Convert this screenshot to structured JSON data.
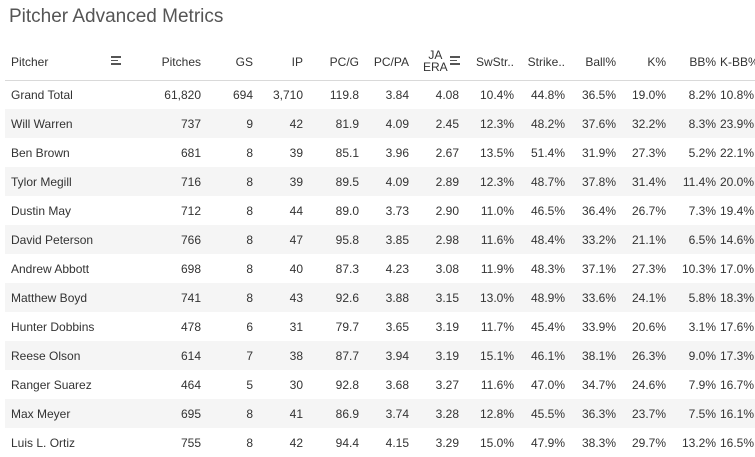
{
  "title": "Pitcher Advanced Metrics",
  "columns": {
    "pitcher": "Pitcher",
    "pitches": "Pitches",
    "gs": "GS",
    "ip": "IP",
    "pcg": "PC/G",
    "pcpa": "PC/PA",
    "ja_line1": "JA",
    "ja_line2": "ERA",
    "swstr": "SwStr..",
    "strike": "Strike..",
    "ball": "Ball%",
    "k": "K%",
    "bb": "BB%",
    "kbb": "K-BB%"
  },
  "total": [
    "Grand Total",
    "61,820",
    "694",
    "3,710",
    "119.8",
    "3.84",
    "4.08",
    "10.4%",
    "44.8%",
    "36.5%",
    "19.0%",
    "8.2%",
    "10.8%"
  ],
  "rows": [
    [
      "Will Warren",
      "737",
      "9",
      "42",
      "81.9",
      "4.09",
      "2.45",
      "12.3%",
      "48.2%",
      "37.6%",
      "32.2%",
      "8.3%",
      "23.9%"
    ],
    [
      "Ben Brown",
      "681",
      "8",
      "39",
      "85.1",
      "3.96",
      "2.67",
      "13.5%",
      "51.4%",
      "31.9%",
      "27.3%",
      "5.2%",
      "22.1%"
    ],
    [
      "Tylor Megill",
      "716",
      "8",
      "39",
      "89.5",
      "4.09",
      "2.89",
      "12.3%",
      "48.7%",
      "37.8%",
      "31.4%",
      "11.4%",
      "20.0%"
    ],
    [
      "Dustin May",
      "712",
      "8",
      "44",
      "89.0",
      "3.73",
      "2.90",
      "11.0%",
      "46.5%",
      "36.4%",
      "26.7%",
      "7.3%",
      "19.4%"
    ],
    [
      "David Peterson",
      "766",
      "8",
      "47",
      "95.8",
      "3.85",
      "2.98",
      "11.6%",
      "48.4%",
      "33.2%",
      "21.1%",
      "6.5%",
      "14.6%"
    ],
    [
      "Andrew Abbott",
      "698",
      "8",
      "40",
      "87.3",
      "4.23",
      "3.08",
      "11.9%",
      "48.3%",
      "37.1%",
      "27.3%",
      "10.3%",
      "17.0%"
    ],
    [
      "Matthew Boyd",
      "741",
      "8",
      "43",
      "92.6",
      "3.88",
      "3.15",
      "13.0%",
      "48.9%",
      "33.6%",
      "24.1%",
      "5.8%",
      "18.3%"
    ],
    [
      "Hunter Dobbins",
      "478",
      "6",
      "31",
      "79.7",
      "3.65",
      "3.19",
      "11.7%",
      "45.4%",
      "33.9%",
      "20.6%",
      "3.1%",
      "17.6%"
    ],
    [
      "Reese Olson",
      "614",
      "7",
      "38",
      "87.7",
      "3.94",
      "3.19",
      "15.1%",
      "46.1%",
      "38.1%",
      "26.3%",
      "9.0%",
      "17.3%"
    ],
    [
      "Ranger Suarez",
      "464",
      "5",
      "30",
      "92.8",
      "3.68",
      "3.27",
      "11.6%",
      "47.0%",
      "34.7%",
      "24.6%",
      "7.9%",
      "16.7%"
    ],
    [
      "Max Meyer",
      "695",
      "8",
      "41",
      "86.9",
      "3.74",
      "3.28",
      "12.8%",
      "45.5%",
      "36.3%",
      "23.7%",
      "7.5%",
      "16.1%"
    ],
    [
      "Luis L. Ortiz",
      "755",
      "8",
      "42",
      "94.4",
      "4.15",
      "3.29",
      "15.0%",
      "47.9%",
      "38.3%",
      "29.7%",
      "13.2%",
      "16.5%"
    ]
  ]
}
